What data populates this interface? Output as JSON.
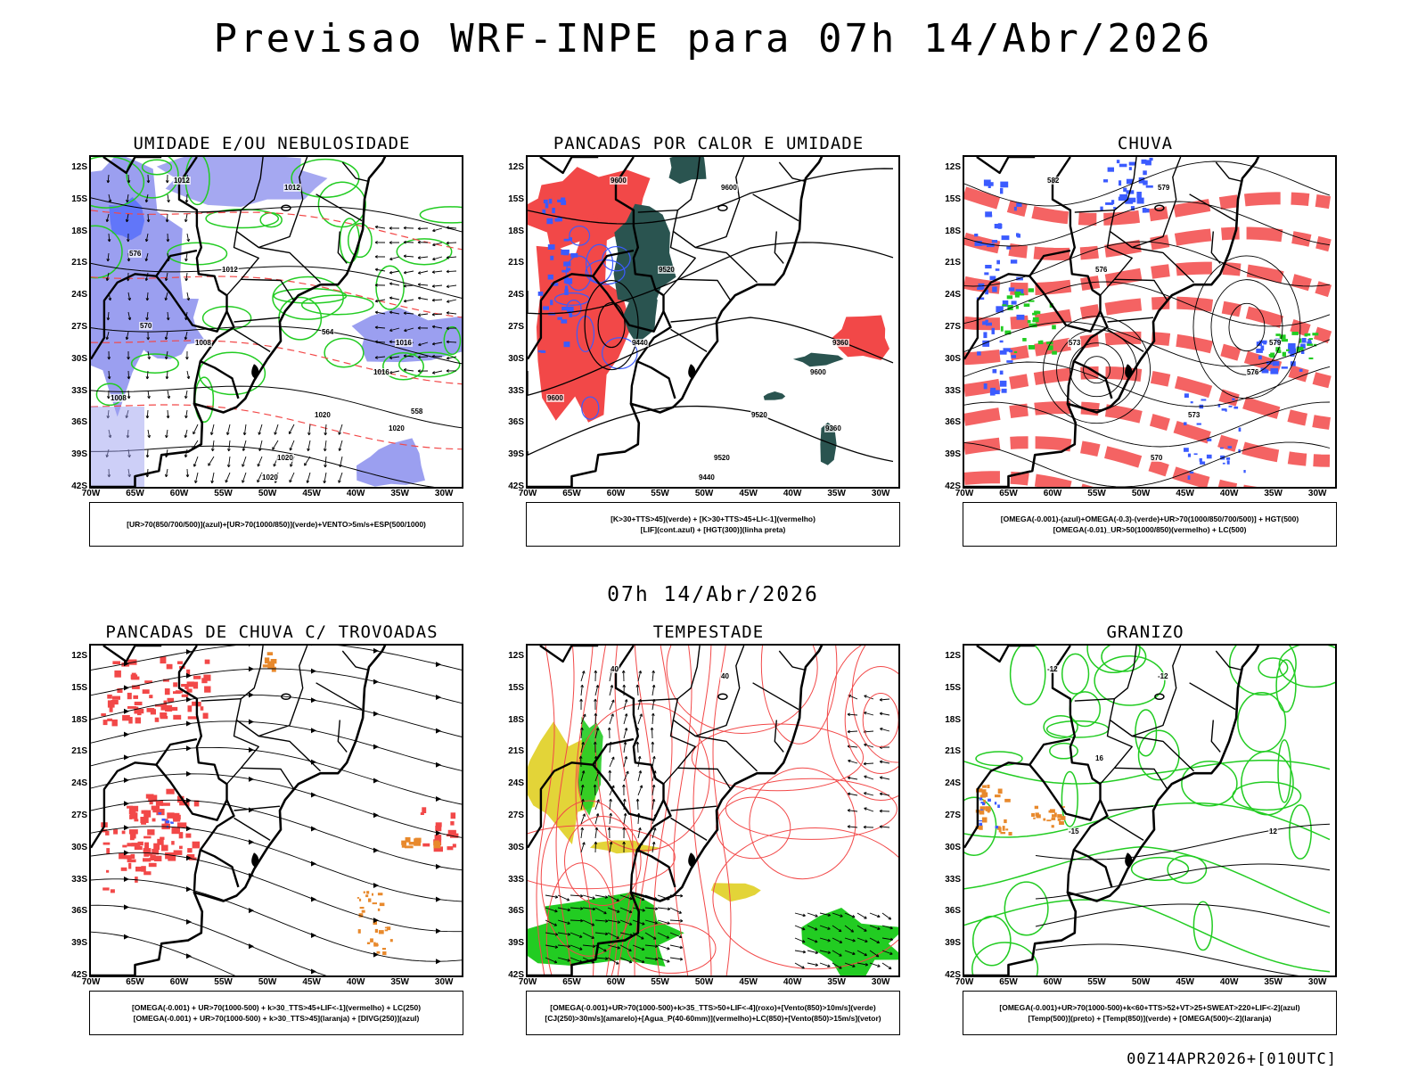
{
  "header": {
    "title": "Previsao WRF-INPE  para 07h 14/Abr/2026"
  },
  "mid_label": "07h 14/Abr/2026",
  "footer": "00Z14APR2026+[010UTC]",
  "axes": {
    "lat_labels": [
      "12S",
      "15S",
      "18S",
      "21S",
      "24S",
      "27S",
      "30S",
      "33S",
      "36S",
      "39S",
      "42S"
    ],
    "lon_labels": [
      "70W",
      "65W",
      "60W",
      "55W",
      "50W",
      "45W",
      "40W",
      "35W",
      "30W"
    ]
  },
  "colors": {
    "blue": "#3b5bff",
    "light_blue": "#9b9ff0",
    "green": "#22cc22",
    "red": "#f24848",
    "dark_teal": "#2a5450",
    "yellow": "#e3d438",
    "orange": "#e8892c",
    "black": "#000000"
  },
  "panels": [
    {
      "title": "UMIDADE E/OU NEBULOSIDADE",
      "legend": [
        "[UR>70(850/700/500)](azul)+[UR>70(1000/850)](verde)+VENTO>5m/s+ESP(500/1000)"
      ],
      "labels": [
        "1012",
        "1012",
        "1012",
        "1008",
        "1016",
        "1016",
        "1020",
        "1020",
        "1020",
        "1020",
        "1008",
        "576",
        "570",
        "564",
        "558"
      ]
    },
    {
      "title": "PANCADAS POR CALOR E UMIDADE",
      "legend": [
        "[K>30+TTS>45](verde) + [K>30+TTS>45+LI<-1](vermelho)",
        "[LIF](cont.azul) + [HGT(300)](linha preta)"
      ],
      "labels": [
        "9600",
        "9600",
        "9520",
        "9440",
        "9360",
        "9600",
        "9520",
        "9520",
        "9440",
        "9360",
        "9600"
      ]
    },
    {
      "title": "CHUVA",
      "legend": [
        "[OMEGA(-0.001)-(azul)+OMEGA(-0.3)-(verde)+UR>70(1000/850/700/500)] + HGT(500)",
        "[OMEGA(-0.01)_UR>50(1000/850)(vermelho) + LC(500)"
      ],
      "labels": [
        "582",
        "579",
        "576",
        "573",
        "579",
        "576",
        "573",
        "570"
      ]
    },
    {
      "title": "PANCADAS DE CHUVA C/ TROVOADAS",
      "legend": [
        "[OMEGA(-0.001) + UR>70(1000-500) + k>30_TTS>45+LIF<-1](vermelho) + LC(250)",
        "[OMEGA(-0.001) + UR>70(1000-500) + k>30_TTS>45](laranja) + [DIVG(250)](azul)"
      ],
      "labels": []
    },
    {
      "title": "TEMPESTADE",
      "legend": [
        "[OMEGA(-0.001)+UR>70(1000-500)+k>35_TTS>50+LIF<-4](roxo)+[Vento(850)>10m/s](verde)",
        "[CJ(250)>30m/s](amarelo)+[Agua_P(40-60mm)](vermelho)+LC(850)+[Vento(850)>15m/s](vetor)"
      ],
      "labels": [
        "40",
        "40"
      ]
    },
    {
      "title": "GRANIZO",
      "legend": [
        "[OMEGA(-0.001)+UR>70(1000-500)+k<60+TTS>52+VT>25+SWEAT>220+LIF<-2](azul)",
        "[Temp(500)](preto) + [Temp(850)](verde) + [OMEGA(500)<-2](laranja)"
      ],
      "labels": [
        "-12",
        "-12",
        "16",
        "-15",
        "12"
      ]
    }
  ]
}
